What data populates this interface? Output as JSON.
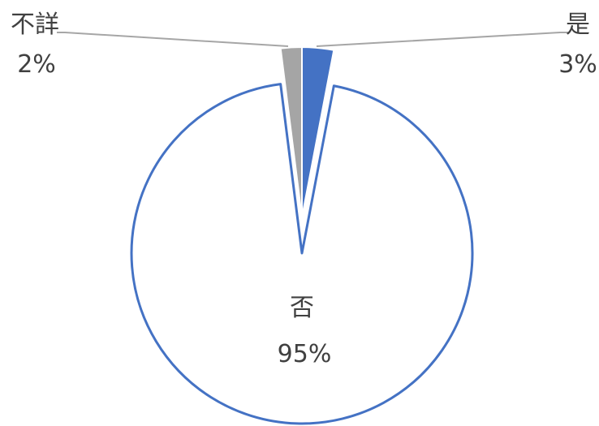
{
  "chart_data": {
    "type": "pie",
    "title": "",
    "slices": [
      {
        "label": "是",
        "value": 3,
        "value_label": "3%",
        "color": "#4472C4",
        "fill": true
      },
      {
        "label": "否",
        "value": 95,
        "value_label": "95%",
        "color": "#4472C4",
        "fill": false
      },
      {
        "label": "不詳",
        "value": 2,
        "value_label": "2%",
        "color": "#A5A5A5",
        "fill": true
      }
    ],
    "exploded": true,
    "legend": "none"
  }
}
